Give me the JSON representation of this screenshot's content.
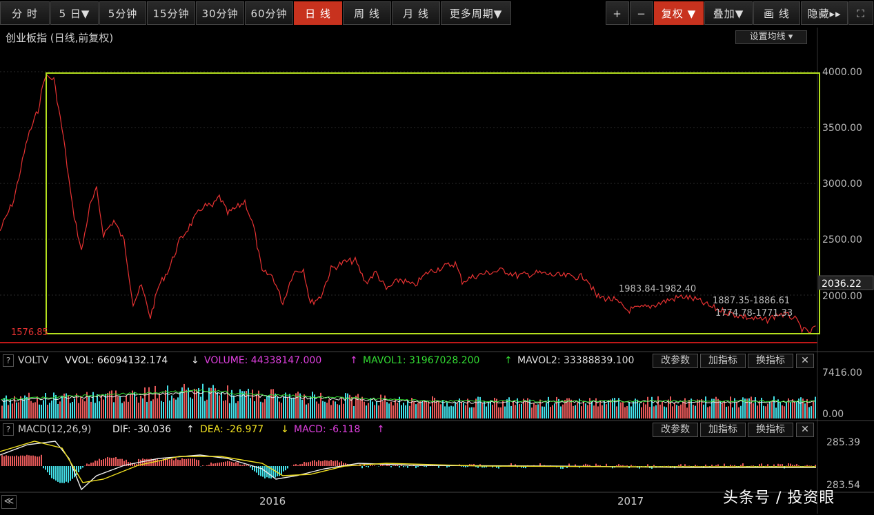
{
  "toolbar": {
    "periods": [
      "分 时",
      "5 日▼",
      "5分钟",
      "15分钟",
      "30分钟",
      "60分钟",
      "日 线",
      "周 线",
      "月 线",
      "更多周期▼"
    ],
    "active_period": "日 线",
    "tools": [
      "+",
      "−",
      "复权 ▼",
      "叠加▼",
      "画 线",
      "隐藏▸▸",
      "⛶"
    ],
    "active_tool": "复权 ▼"
  },
  "main_chart": {
    "title_name": "创业板指",
    "title_mode": "(日线,前复权)",
    "ma_button": "设置均线 ▾",
    "y_ticks": [
      "4000.00",
      "3500.00",
      "3000.00",
      "2500.00",
      "2000.00"
    ],
    "current_price": "2036.22",
    "low_label": "1576.85",
    "annotations": [
      "1983.84-1982.40",
      "1887.35-1886.61",
      "1774.78-1771.33"
    ],
    "line_color": "#e83232",
    "box_color": "#b4e01e"
  },
  "volume_panel": {
    "name": "VOLTV",
    "vvol": "VVOL: 66094132.174",
    "vvol_arrow": "↓",
    "volume": "VOLUME: 44338147.000",
    "volume_arrow": "↑",
    "mavol1": "MAVOL1: 31967028.200",
    "mavol1_arrow": "↑",
    "mavol2": "MAVOL2: 33388839.100",
    "y_ticks": [
      "7416.00",
      "0.00"
    ],
    "buttons": [
      "改参数",
      "加指标",
      "换指标",
      "✕"
    ]
  },
  "macd_panel": {
    "name": "MACD(12,26,9)",
    "dif": "DIF: -30.036",
    "dif_arrow": "↑",
    "dea": "DEA: -26.977",
    "dea_arrow": "↓",
    "macd": "MACD: -6.118",
    "macd_arrow": "↑",
    "y_ticks": [
      "285.39",
      "283.54"
    ],
    "buttons": [
      "改参数",
      "加指标",
      "换指标",
      "✕"
    ]
  },
  "x_axis": {
    "nav": "≪",
    "years": [
      "2016",
      "2017"
    ]
  },
  "watermark": "头条号 / 投资眼"
}
